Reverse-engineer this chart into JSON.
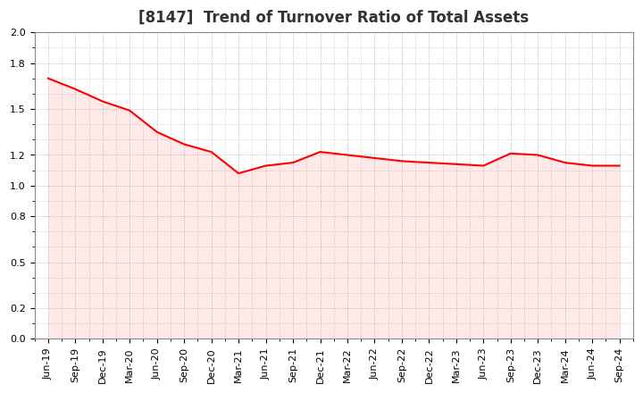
{
  "title": "[8147]  Trend of Turnover Ratio of Total Assets",
  "labels": [
    "Jun-19",
    "Sep-19",
    "Dec-19",
    "Mar-20",
    "Jun-20",
    "Sep-20",
    "Dec-20",
    "Mar-21",
    "Jun-21",
    "Sep-21",
    "Dec-21",
    "Mar-22",
    "Jun-22",
    "Sep-22",
    "Dec-22",
    "Mar-23",
    "Jun-23",
    "Sep-23",
    "Dec-23",
    "Mar-24",
    "Jun-24",
    "Sep-24"
  ],
  "values": [
    1.7,
    1.63,
    1.55,
    1.49,
    1.35,
    1.27,
    1.22,
    1.08,
    1.13,
    1.15,
    1.22,
    1.2,
    1.18,
    1.16,
    1.15,
    1.14,
    1.13,
    1.21,
    1.2,
    1.15,
    1.13,
    1.13
  ],
  "line_color": "#FF0000",
  "line_width": 1.5,
  "fill_color": "#FF8080",
  "fill_alpha": 0.18,
  "ylim": [
    0.0,
    2.0
  ],
  "ytick_values": [
    0.0,
    0.2,
    0.5,
    0.8,
    1.0,
    1.2,
    1.5,
    1.8,
    2.0
  ],
  "ytick_labels": [
    "0.0",
    "0.2",
    "0.5",
    "0.8",
    "1.0",
    "1.2",
    "1.5",
    "1.8",
    "2.0"
  ],
  "grid_color": "#aaaaaa",
  "background_color": "#ffffff",
  "title_fontsize": 12,
  "tick_fontsize": 8,
  "title_color": "#333333"
}
